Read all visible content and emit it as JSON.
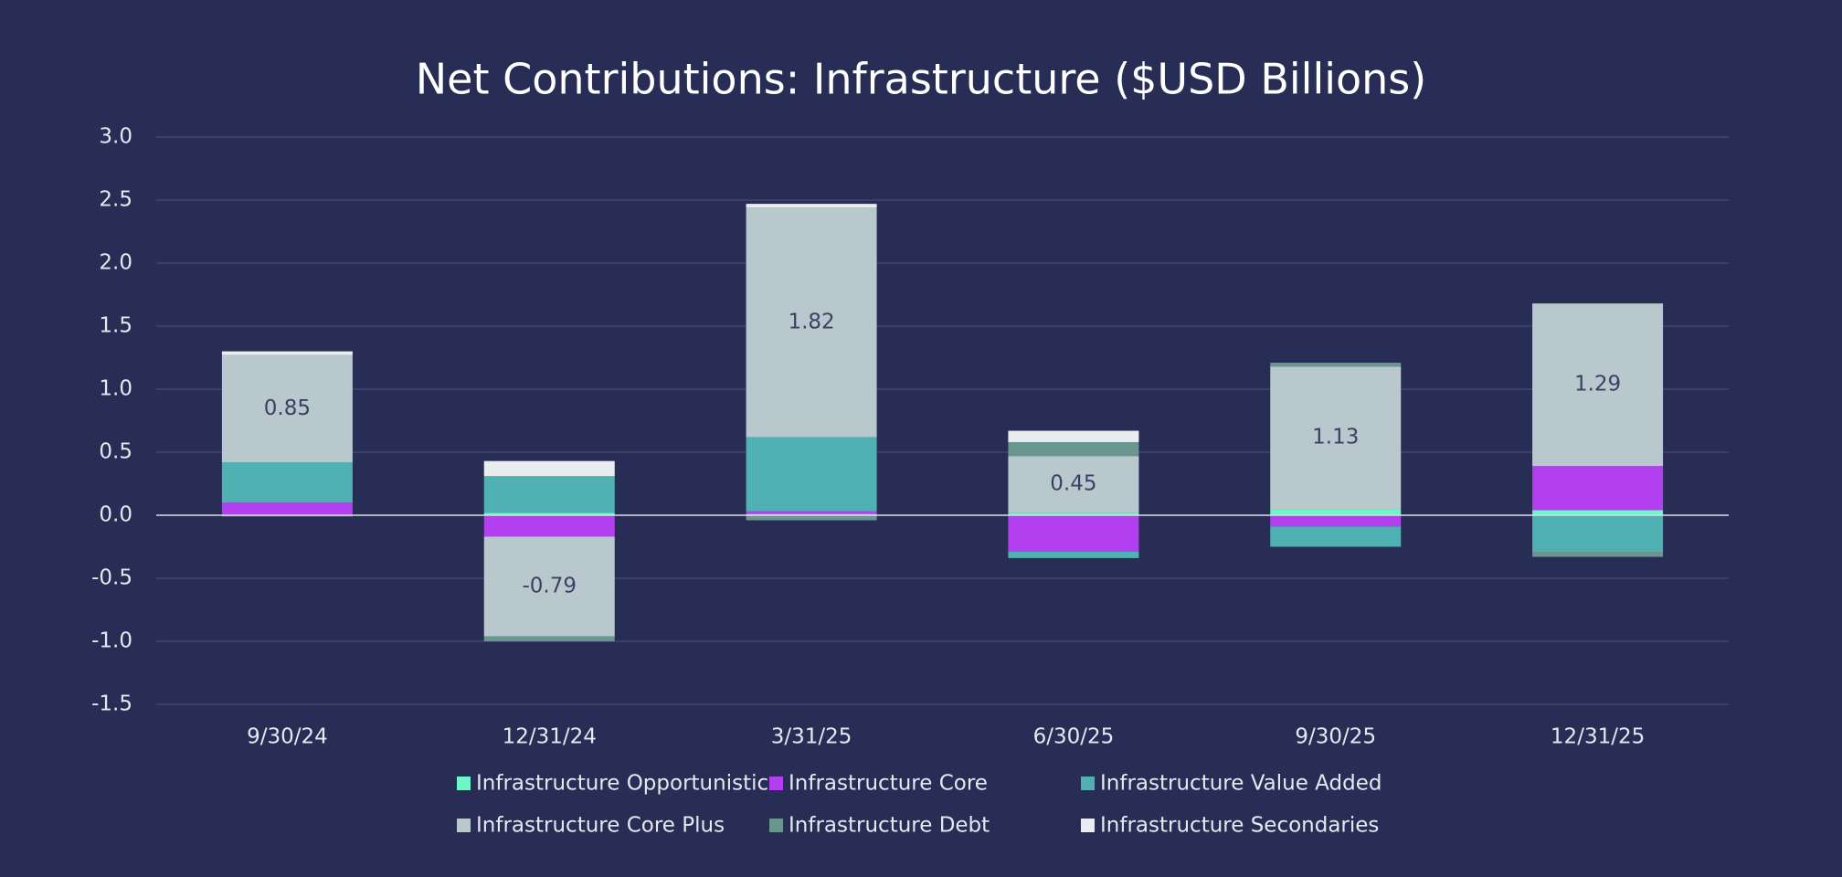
{
  "chart_data": {
    "type": "stacked-bar",
    "title": "Net Contributions: Infrastructure ($USD Billions)",
    "categories": [
      "9/30/24",
      "12/31/24",
      "3/31/25",
      "6/30/25",
      "9/30/25",
      "12/31/25"
    ],
    "series": [
      {
        "name": "Infrastructure Opportunistic",
        "color": "#6ff5c6",
        "values": [
          0,
          0.02,
          0.01,
          0.02,
          0.05,
          0.04
        ]
      },
      {
        "name": "Infrastructure Core",
        "color": "#b23ff0",
        "values": [
          0.1,
          -0.17,
          0.02,
          -0.29,
          -0.09,
          0.35
        ]
      },
      {
        "name": "Infrastructure Value Added",
        "color": "#4fb1b1",
        "values": [
          0.32,
          0.29,
          0.59,
          -0.05,
          -0.16,
          -0.29
        ]
      },
      {
        "name": "Infrastructure Core Plus",
        "color": "#b9c8cc",
        "values": [
          0.85,
          -0.79,
          1.82,
          0.45,
          1.13,
          1.29
        ]
      },
      {
        "name": "Infrastructure Debt",
        "color": "#6a9690",
        "values": [
          -0.01,
          -0.04,
          -0.04,
          0.11,
          0.03,
          -0.04
        ]
      },
      {
        "name": "Infrastructure Secondaries",
        "color": "#e9edef",
        "values": [
          0.03,
          0.12,
          0.03,
          0.09,
          0,
          0
        ]
      }
    ],
    "labeled_series": 3,
    "ylim": [
      -1.5,
      3.0
    ],
    "yticks": [
      {
        "value": -1.5,
        "label": "-1.5"
      },
      {
        "value": -1,
        "label": "-1.0"
      },
      {
        "value": -0.5,
        "label": "-0.5"
      },
      {
        "value": 0,
        "label": "0.0"
      },
      {
        "value": 0.5,
        "label": "0.5"
      },
      {
        "value": 1,
        "label": "1.0"
      },
      {
        "value": 1.5,
        "label": "1.5"
      },
      {
        "value": 2,
        "label": "2.0"
      },
      {
        "value": 2.5,
        "label": "2.5"
      },
      {
        "value": 3,
        "label": "3.0"
      }
    ],
    "grid": true
  }
}
